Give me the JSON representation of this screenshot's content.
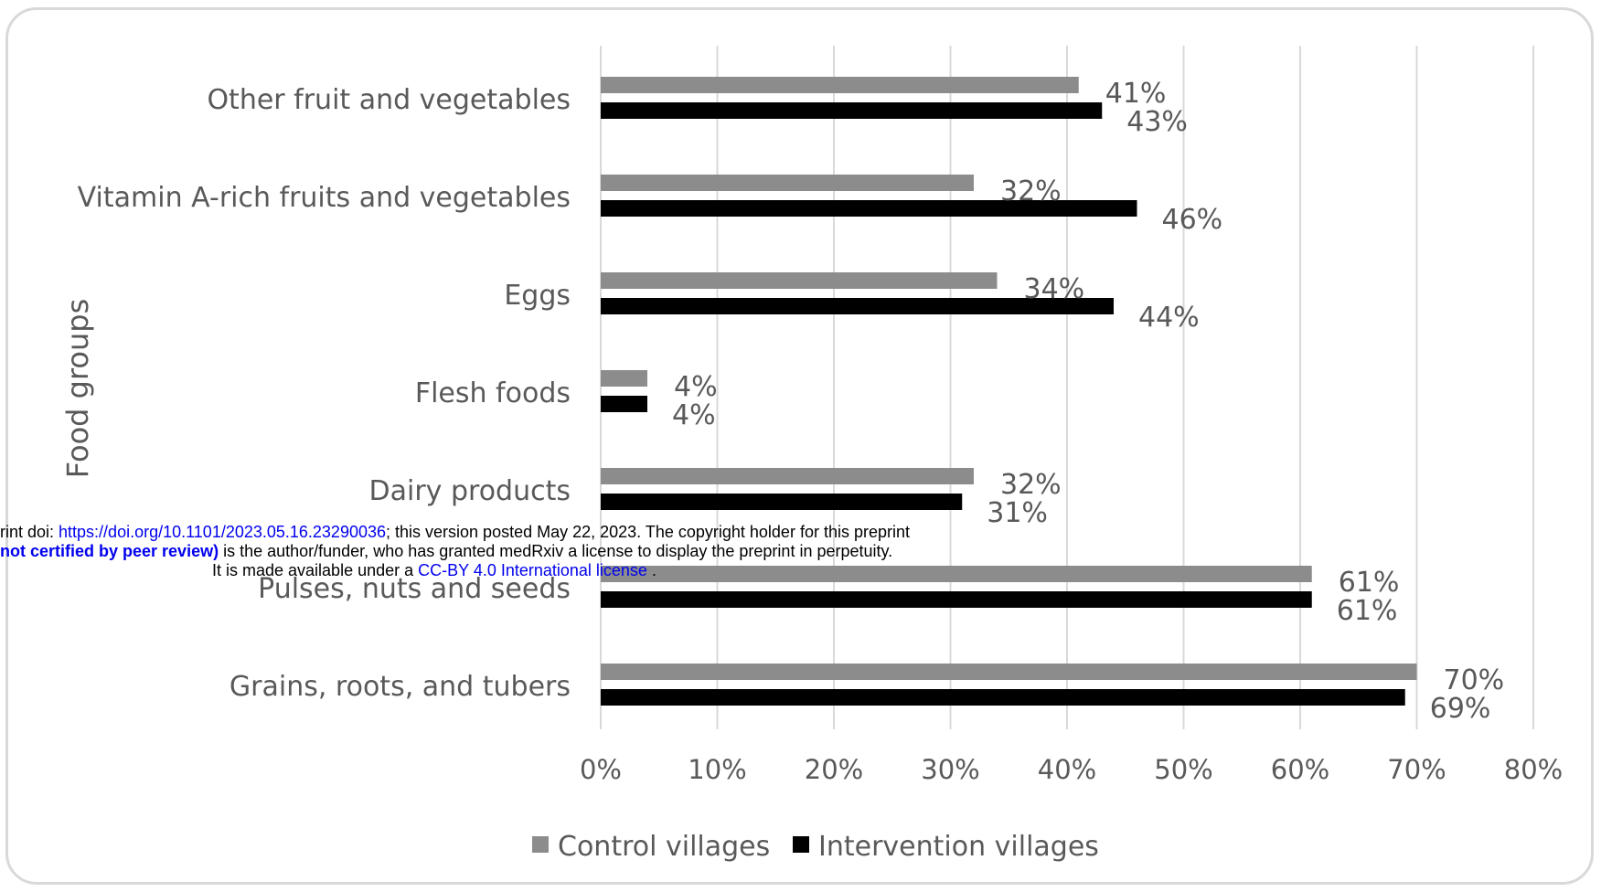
{
  "chart_data": {
    "type": "bar",
    "orientation": "horizontal",
    "ylabel": "Food groups",
    "xlabel": "",
    "xlim": [
      0,
      80
    ],
    "xticks": [
      "0%",
      "10%",
      "20%",
      "30%",
      "40%",
      "50%",
      "60%",
      "70%",
      "80%"
    ],
    "grid": "vertical gridlines on",
    "legend_placement": "bottom",
    "categories": [
      "Other fruit and vegetables",
      "Vitamin A-rich fruits and vegetables",
      "Eggs",
      "Flesh foods",
      "Dairy products",
      "Pulses, nuts and seeds",
      "Grains, roots, and tubers"
    ],
    "series": [
      {
        "name": "Control villages",
        "color": "#8c8c8c",
        "values": [
          41,
          32,
          34,
          4,
          32,
          61,
          70
        ],
        "labels": [
          "41%",
          "32%",
          "34%",
          "4%",
          "32%",
          "61%",
          "70%"
        ]
      },
      {
        "name": "Intervention villages",
        "color": "#000000",
        "values": [
          43,
          46,
          44,
          4,
          31,
          61,
          69
        ],
        "labels": [
          "43%",
          "46%",
          "44%",
          "4%",
          "31%",
          "61%",
          "69%"
        ]
      }
    ]
  },
  "banner": {
    "line1_prefix": "rint doi: ",
    "line1_link": "https://doi.org/10.1101/2023.05.16.23290036",
    "line1_suffix": "; this version posted May 22, 2023. The copyright holder for this preprint",
    "line2_bold": "not certified by peer review)",
    "line2_suffix": " is the author/funder, who has granted medRxiv a license to display the preprint in perpetuity.",
    "line3_prefix": "It is made available under a ",
    "line3_link": "CC-BY 4.0 International license",
    "line3_suffix": " ."
  }
}
